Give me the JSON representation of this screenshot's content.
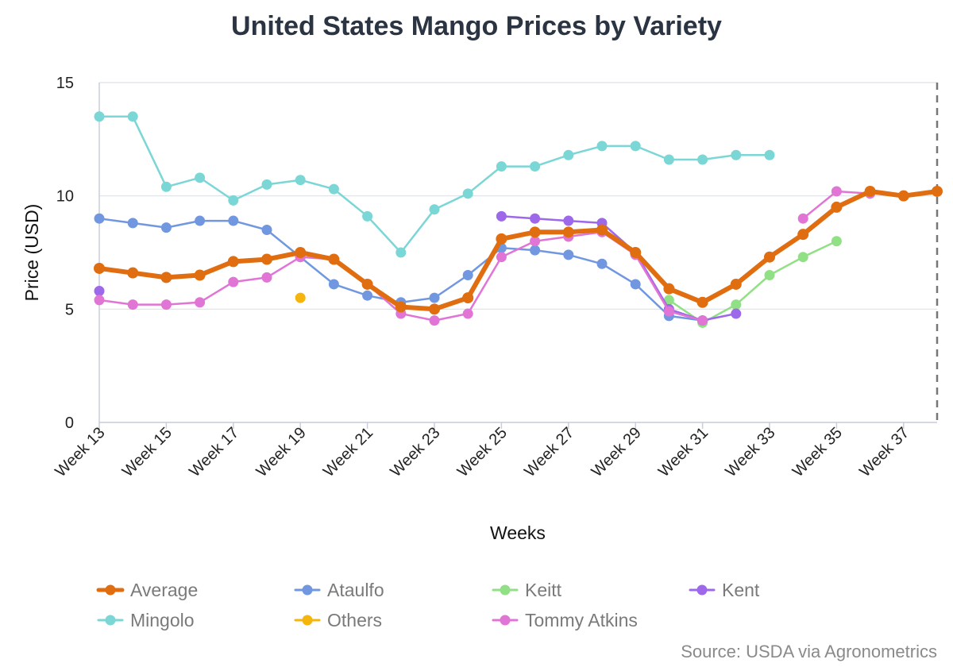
{
  "chart_data": {
    "type": "line",
    "title": "United States Mango Prices by Variety",
    "xlabel": "Weeks",
    "ylabel": "Price (USD)",
    "ylim": [
      0,
      15
    ],
    "yticks": [
      "0",
      "5",
      "10",
      "15"
    ],
    "x_start_week": 13,
    "x_end_week": 38,
    "x_tick_labels": [
      "Week 13",
      "Week 15",
      "Week 17",
      "Week 19",
      "Week 21",
      "Week 23",
      "Week 25",
      "Week 27",
      "Week 29",
      "Week 31",
      "Week 33",
      "Week 35",
      "Week 37"
    ],
    "x_tick_weeks": [
      13,
      15,
      17,
      19,
      21,
      23,
      25,
      27,
      29,
      31,
      33,
      35,
      37
    ],
    "grid": true,
    "legend_position": "bottom",
    "source": "Source: USDA via Agronometrics",
    "series": [
      {
        "name": "Ataulfo",
        "color": "#7097e0",
        "x": [
          13,
          14,
          15,
          16,
          17,
          18,
          19,
          20,
          21,
          22,
          23,
          24,
          25,
          26,
          27,
          28,
          29,
          30,
          31
        ],
        "y": [
          9.0,
          8.8,
          8.6,
          8.9,
          8.9,
          8.5,
          7.3,
          6.1,
          5.6,
          5.3,
          5.5,
          6.5,
          7.7,
          7.6,
          7.4,
          7.0,
          6.1,
          4.7,
          4.5
        ]
      },
      {
        "name": "Keitt",
        "color": "#92e085",
        "x": [
          30,
          31,
          32,
          33,
          34,
          35
        ],
        "y": [
          5.4,
          4.4,
          5.2,
          6.5,
          7.3,
          8.0
        ]
      },
      {
        "name": "Kent",
        "color": "#9d68ea",
        "x": [
          13,
          25,
          26,
          27,
          28,
          29,
          30,
          31,
          32
        ],
        "y": [
          5.8,
          9.1,
          9.0,
          8.9,
          8.8,
          7.5,
          5.0,
          4.5,
          4.8
        ]
      },
      {
        "name": "Mingolo",
        "color": "#7bd6d6",
        "x": [
          13,
          14,
          15,
          16,
          17,
          18,
          19,
          20,
          21,
          22,
          23,
          24,
          25,
          26,
          27,
          28,
          29,
          30,
          31,
          32,
          33
        ],
        "y": [
          13.5,
          13.5,
          10.4,
          10.8,
          9.8,
          10.5,
          10.7,
          10.3,
          9.1,
          7.5,
          9.4,
          10.1,
          11.3,
          11.3,
          11.8,
          12.2,
          12.2,
          11.6,
          11.6,
          11.8,
          11.8
        ]
      },
      {
        "name": "Others",
        "color": "#f5b50c",
        "x": [
          19
        ],
        "y": [
          5.5
        ]
      },
      {
        "name": "Tommy Atkins",
        "color": "#e075d5",
        "x": [
          13,
          14,
          15,
          16,
          17,
          18,
          19,
          20,
          21,
          22,
          23,
          24,
          25,
          26,
          27,
          28,
          29,
          30,
          31,
          34,
          35,
          36
        ],
        "y": [
          5.4,
          5.2,
          5.2,
          5.3,
          6.2,
          6.4,
          7.3,
          7.2,
          6.1,
          4.8,
          4.5,
          4.8,
          7.3,
          8.0,
          8.2,
          8.4,
          7.4,
          4.9,
          4.5,
          9.0,
          10.2,
          10.1
        ]
      },
      {
        "name": "Average",
        "color": "#e06e10",
        "bold": true,
        "x": [
          13,
          14,
          15,
          16,
          17,
          18,
          19,
          20,
          21,
          22,
          23,
          24,
          25,
          26,
          27,
          28,
          29,
          30,
          31,
          32,
          33,
          34,
          35,
          36,
          37,
          38
        ],
        "y": [
          6.8,
          6.6,
          6.4,
          6.5,
          7.1,
          7.2,
          7.5,
          7.2,
          6.1,
          5.1,
          5.0,
          5.5,
          8.1,
          8.4,
          8.4,
          8.5,
          7.5,
          5.9,
          5.3,
          6.1,
          7.3,
          8.3,
          9.5,
          10.2,
          10.0,
          10.2
        ]
      }
    ],
    "legend_order": [
      "Average",
      "Ataulfo",
      "Keitt",
      "Kent",
      "Mingolo",
      "Others",
      "Tommy Atkins"
    ]
  }
}
